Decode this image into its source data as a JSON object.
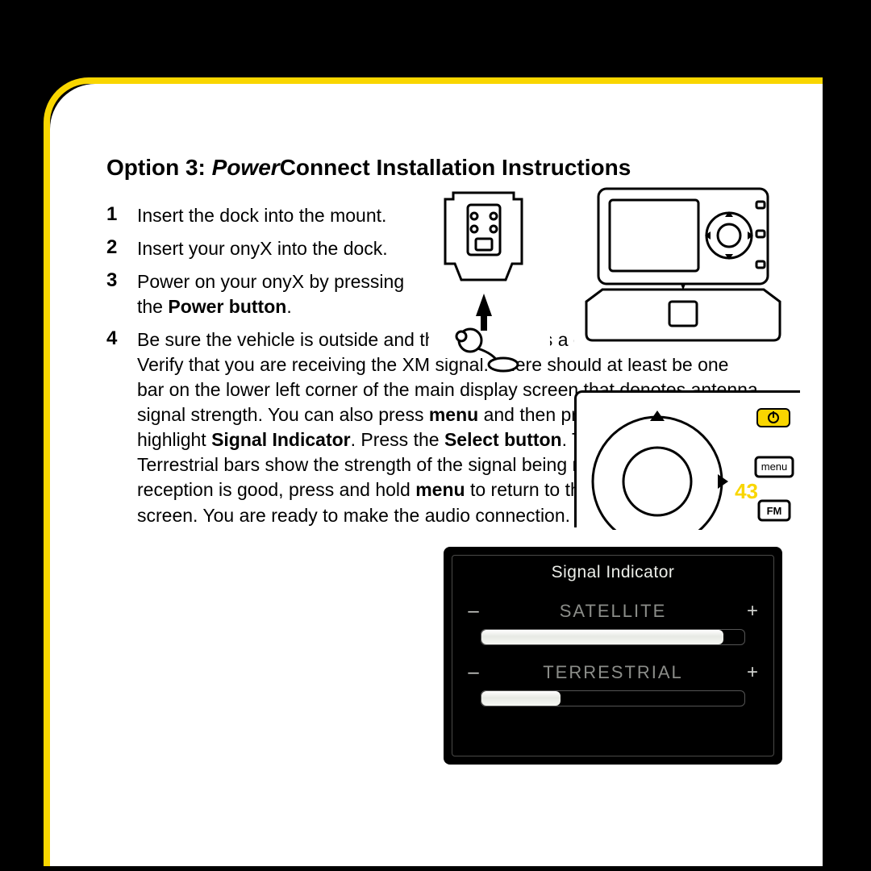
{
  "title_prefix": "Option 3: ",
  "title_italic": "Power",
  "title_rest": "Connect Installation Instructions",
  "steps": {
    "s1": "Insert the dock into the mount.",
    "s2": "Insert your onyX into the dock.",
    "s3_a": "Power on your onyX by pressing the ",
    "s3_b": "Power button",
    "s3_c": ".",
    "s4_a": "Be sure the vehicle is outside and the antenna has a clear view of the sky. Verify that you are receiving the XM signal. There should at least be one bar on the lower left corner of the main display screen that denotes antenna signal strength. You can also press ",
    "s4_menu": "menu",
    "s4_b": " and then press ",
    "s4_c": " to scroll to and highlight ",
    "s4_sig": "Signal Indicator",
    "s4_d": ". Press the ",
    "s4_sel": "Select button",
    "s4_e": ". The Satellite and Terrestrial bars show the strength of the signal being received. If the signal reception is good, press and hold ",
    "s4_f": " to return to the main display screen. You are ready to make the audio connection."
  },
  "signal": {
    "title": "Signal Indicator",
    "sat_label": "SATELLITE",
    "ter_label": "TERRESTRIAL",
    "sat_pct": 92,
    "ter_pct": 30,
    "minus": "–",
    "plus": "+",
    "bar_bg": "#000000",
    "bar_fill": "#f4f6f1",
    "screen_bg": "#000000",
    "title_color": "#eceee9",
    "label_color": "#8b8d89"
  },
  "device_buttons": {
    "menu": "menu",
    "fm": "FM"
  },
  "page_number": "43",
  "colors": {
    "accent": "#f9d600",
    "page_bg": "#ffffff",
    "outer_bg": "#000000"
  }
}
